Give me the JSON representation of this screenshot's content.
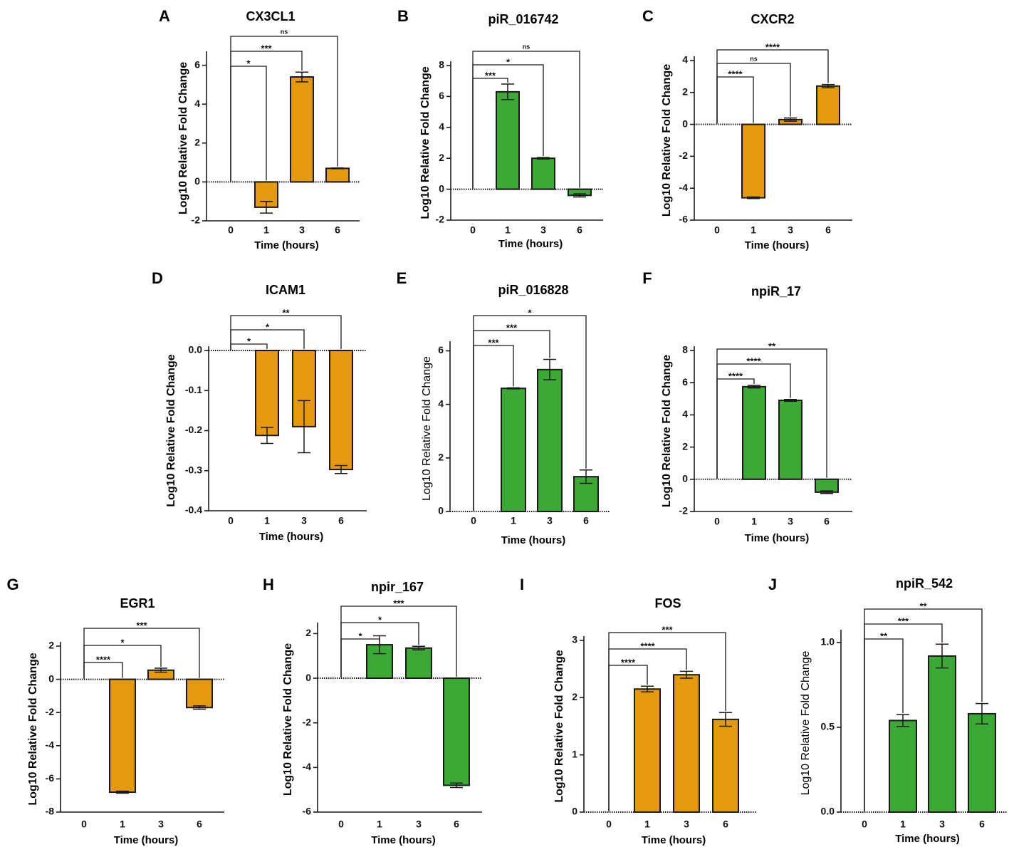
{
  "figure": {
    "colors": {
      "orange": "#E59A0E",
      "green": "#3BAA35",
      "stroke": "#1a1a1a"
    }
  },
  "chart_data": [
    {
      "panel": "A",
      "type": "bar",
      "title": "CX3CL1",
      "xlabel": "Time (hours)",
      "ylabel": "Log10 Relative Fold Change",
      "ylabel_bold": true,
      "categories": [
        "0",
        "1",
        "3",
        "6"
      ],
      "values": [
        0,
        -1.3,
        5.4,
        0.7
      ],
      "errors": [
        0,
        0.3,
        0.25,
        0.02
      ],
      "color": "orange",
      "ylim": [
        -2,
        6.5
      ],
      "yticks": [
        "-2",
        "0",
        "2",
        "4",
        "6"
      ],
      "ytick_values": [
        -2,
        0,
        2,
        4,
        6
      ],
      "brackets": [
        {
          "to": "1",
          "label": "*"
        },
        {
          "to": "3",
          "label": "***"
        },
        {
          "to": "6",
          "label": "ns"
        }
      ]
    },
    {
      "panel": "B",
      "type": "bar",
      "title": "piR_016742",
      "xlabel": "Time (hours)",
      "ylabel": "Log10 Relative Fold Change",
      "ylabel_bold": true,
      "categories": [
        "0",
        "1",
        "3",
        "6"
      ],
      "values": [
        0,
        6.3,
        2.0,
        -0.4
      ],
      "errors": [
        0,
        0.5,
        0.05,
        0.1
      ],
      "color": "green",
      "ylim": [
        -2,
        8
      ],
      "yticks": [
        "-2",
        "0",
        "2",
        "4",
        "6",
        "8"
      ],
      "ytick_values": [
        -2,
        0,
        2,
        4,
        6,
        8
      ],
      "brackets": [
        {
          "to": "1",
          "label": "***"
        },
        {
          "to": "3",
          "label": "*"
        },
        {
          "to": "6",
          "label": "ns"
        }
      ]
    },
    {
      "panel": "C",
      "type": "bar",
      "title": "CXCR2",
      "xlabel": "Time (hours)",
      "ylabel": "Log10 Relative Fold Change",
      "ylabel_bold": true,
      "categories": [
        "0",
        "1",
        "3",
        "6"
      ],
      "values": [
        0,
        -4.6,
        0.3,
        2.4
      ],
      "errors": [
        0,
        0.05,
        0.1,
        0.1
      ],
      "color": "orange",
      "ylim": [
        -6,
        4
      ],
      "yticks": [
        "-6",
        "-4",
        "-2",
        "0",
        "2",
        "4"
      ],
      "ytick_values": [
        -6,
        -4,
        -2,
        0,
        2,
        4
      ],
      "brackets": [
        {
          "to": "1",
          "label": "****"
        },
        {
          "to": "3",
          "label": "ns"
        },
        {
          "to": "6",
          "label": "****"
        }
      ]
    },
    {
      "panel": "D",
      "type": "bar",
      "title": "ICAM1",
      "xlabel": "Time (hours)",
      "ylabel": "Log10 Relative Fold Change",
      "ylabel_bold": true,
      "categories": [
        "0",
        "1",
        "3",
        "6"
      ],
      "values": [
        0,
        -0.212,
        -0.19,
        -0.297
      ],
      "errors": [
        0,
        0.02,
        0.065,
        0.01
      ],
      "color": "orange",
      "ylim": [
        -0.4,
        0
      ],
      "yticks": [
        "-0.4",
        "-0.3",
        "-0.2",
        "-0.1",
        "0.0"
      ],
      "ytick_values": [
        -0.4,
        -0.3,
        -0.2,
        -0.1,
        0
      ],
      "brackets": [
        {
          "to": "1",
          "label": "*"
        },
        {
          "to": "3",
          "label": "*"
        },
        {
          "to": "6",
          "label": "**"
        }
      ]
    },
    {
      "panel": "E",
      "type": "bar",
      "title": "piR_016828",
      "xlabel": "Time (hours)",
      "ylabel": "Log10 Relative Fold Change",
      "ylabel_bold": false,
      "categories": [
        "0",
        "1",
        "3",
        "6"
      ],
      "values": [
        0,
        4.6,
        5.3,
        1.3
      ],
      "errors": [
        0,
        0.02,
        0.38,
        0.25
      ],
      "color": "green",
      "ylim": [
        0,
        6.2
      ],
      "yticks": [
        "0",
        "2",
        "4",
        "6"
      ],
      "ytick_values": [
        0,
        2,
        4,
        6
      ],
      "brackets": [
        {
          "to": "1",
          "label": "***"
        },
        {
          "to": "3",
          "label": "***"
        },
        {
          "to": "6",
          "label": "*"
        }
      ]
    },
    {
      "panel": "F",
      "type": "bar",
      "title": "npiR_17",
      "xlabel": "Time (hours)",
      "ylabel": "Log10 Relative Fold Change",
      "ylabel_bold": true,
      "categories": [
        "0",
        "1",
        "3",
        "6"
      ],
      "values": [
        0,
        5.75,
        4.9,
        -0.8
      ],
      "errors": [
        0,
        0.08,
        0.06,
        0.08
      ],
      "color": "green",
      "ylim": [
        -2,
        8
      ],
      "yticks": [
        "-2",
        "0",
        "2",
        "4",
        "6",
        "8"
      ],
      "ytick_values": [
        -2,
        0,
        2,
        4,
        6,
        8
      ],
      "brackets": [
        {
          "to": "1",
          "label": "****"
        },
        {
          "to": "3",
          "label": "****"
        },
        {
          "to": "6",
          "label": "**"
        }
      ]
    },
    {
      "panel": "G",
      "type": "bar",
      "title": "EGR1",
      "xlabel": "Time (hours)",
      "ylabel": "Log10 Relative Fold Change",
      "ylabel_bold": true,
      "categories": [
        "0",
        "1",
        "3",
        "6"
      ],
      "values": [
        0,
        -6.8,
        0.55,
        -1.7
      ],
      "errors": [
        0,
        0.06,
        0.12,
        0.1
      ],
      "color": "orange",
      "ylim": [
        -8,
        2
      ],
      "yticks": [
        "-8",
        "-6",
        "-4",
        "-2",
        "0",
        "2"
      ],
      "ytick_values": [
        -8,
        -6,
        -4,
        -2,
        0,
        2
      ],
      "brackets": [
        {
          "to": "1",
          "label": "****"
        },
        {
          "to": "3",
          "label": "*"
        },
        {
          "to": "6",
          "label": "***"
        }
      ]
    },
    {
      "panel": "H",
      "type": "bar",
      "title": "npir_167",
      "xlabel": "Time (hours)",
      "ylabel": "Log10 Relative Fold Change",
      "ylabel_bold": true,
      "categories": [
        "0",
        "1",
        "3",
        "6"
      ],
      "values": [
        0,
        1.5,
        1.35,
        -4.8
      ],
      "errors": [
        0,
        0.4,
        0.08,
        0.1
      ],
      "color": "green",
      "ylim": [
        -6,
        2.3
      ],
      "yticks": [
        "-6",
        "-4",
        "-2",
        "0",
        "2"
      ],
      "ytick_values": [
        -6,
        -4,
        -2,
        0,
        2
      ],
      "brackets": [
        {
          "to": "1",
          "label": "*"
        },
        {
          "to": "3",
          "label": "*"
        },
        {
          "to": "6",
          "label": "***"
        }
      ]
    },
    {
      "panel": "I",
      "type": "bar",
      "title": "FOS",
      "xlabel": "Time (hours)",
      "ylabel": "Log10 Relative Fold Change",
      "ylabel_bold": true,
      "categories": [
        "0",
        "1",
        "3",
        "6"
      ],
      "values": [
        0,
        2.15,
        2.4,
        1.62
      ],
      "errors": [
        0,
        0.05,
        0.06,
        0.12
      ],
      "color": "orange",
      "ylim": [
        0,
        3
      ],
      "yticks": [
        "0",
        "1",
        "2",
        "3"
      ],
      "ytick_values": [
        0,
        1,
        2,
        3
      ],
      "brackets": [
        {
          "to": "1",
          "label": "****"
        },
        {
          "to": "3",
          "label": "****"
        },
        {
          "to": "6",
          "label": "***"
        }
      ]
    },
    {
      "panel": "J",
      "type": "bar",
      "title": "npiR_542",
      "xlabel": "Time (hours)",
      "ylabel": "Log10 Relative Fold Change",
      "ylabel_bold": false,
      "categories": [
        "0",
        "1",
        "3",
        "6"
      ],
      "values": [
        0,
        0.54,
        0.92,
        0.58
      ],
      "errors": [
        0,
        0.035,
        0.07,
        0.06
      ],
      "color": "green",
      "ylim": [
        0,
        1.05
      ],
      "yticks": [
        "0.0",
        "0.5",
        "1.0"
      ],
      "ytick_values": [
        0,
        0.5,
        1.0
      ],
      "brackets": [
        {
          "to": "1",
          "label": "**"
        },
        {
          "to": "3",
          "label": "***"
        },
        {
          "to": "6",
          "label": "**"
        }
      ]
    }
  ]
}
